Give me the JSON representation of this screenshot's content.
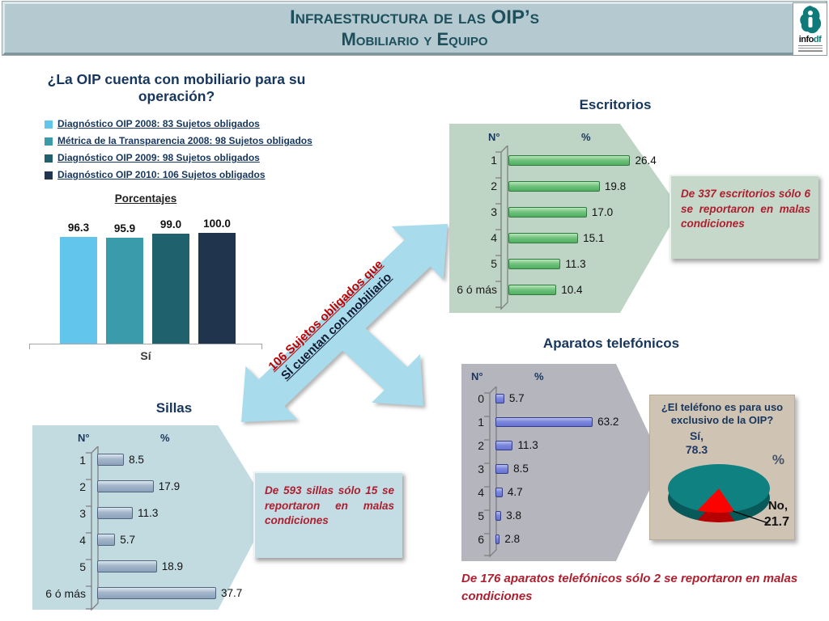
{
  "header": {
    "title_line1": "Infraestructura de las OIP’s",
    "title_line2": "Mobiliario y Equipo",
    "logo_text": "info",
    "logo_accent": "df"
  },
  "question_chart": {
    "title_line1": "¿La OIP cuenta con mobiliario para su",
    "title_line2": "operación?",
    "axis_title": "Porcentajes",
    "x_tick": "Sí",
    "legend": [
      {
        "label": "Diagnóstico OIP 2008: 83 Sujetos obligados",
        "color": "#62c5ec"
      },
      {
        "label": "Métrica de la Transparencia 2008: 98 Sujetos obligados",
        "color": "#3a9cab"
      },
      {
        "label": "Diagnóstico OIP 2009: 98 Sujetos obligados",
        "color": "#20616e"
      },
      {
        "label": "Diagnóstico OIP 2010: 106 Sujetos obligados",
        "color": "#20344d"
      }
    ],
    "value_labels": [
      "96.3",
      "95.9",
      "99.0",
      "100.0"
    ]
  },
  "arrow": {
    "line1": "106 Sujetos obligados que",
    "line2": "SÍ cuentan con mobiliario"
  },
  "escritorios": {
    "title": "Escritorios",
    "col_n": "N°",
    "col_pct": "%",
    "value_labels": [
      "26.4",
      "19.8",
      "17.0",
      "15.1",
      "11.3",
      "10.4"
    ],
    "note": "De 337 escritorios sólo 6 se reportaron en malas condiciones"
  },
  "sillas": {
    "title": "Sillas",
    "col_n": "N°",
    "col_pct": "%",
    "value_labels": [
      "8.5",
      "17.9",
      "11.3",
      "5.7",
      "18.9",
      "37.7"
    ],
    "note": "De 593 sillas sólo 15 se reportaron en malas condiciones"
  },
  "telefonos": {
    "title": "Aparatos telefónicos",
    "col_n": "N°",
    "col_pct": "%",
    "value_labels": [
      "5.7",
      "63.2",
      "11.3",
      "8.5",
      "4.7",
      "3.8",
      "2.8"
    ],
    "note": "De 176 aparatos telefónicos sólo 2 se reportaron en malas condiciones"
  },
  "pie": {
    "title_line1": "¿El teléfono es para uso",
    "title_line2": "exclusivo de la OIP?",
    "si_label": "Sí,",
    "si_value": "78.3",
    "pct_symbol": "%",
    "no_label": "No,",
    "no_value": "21.7"
  },
  "chart_data": [
    {
      "id": "mobiliario_si",
      "type": "bar",
      "title": "¿La OIP cuenta con mobiliario para su operación?",
      "ylabel": "Porcentajes",
      "xlabel": "Sí",
      "categories": [
        "Diagnóstico OIP 2008: 83 Sujetos obligados",
        "Métrica de la Transparencia 2008: 98 Sujetos obligados",
        "Diagnóstico OIP 2009: 98 Sujetos obligados",
        "Diagnóstico OIP 2010: 106 Sujetos obligados"
      ],
      "values": [
        96.3,
        95.9,
        99.0,
        100.0
      ],
      "colors": [
        "#62c5ec",
        "#3a9cab",
        "#20616e",
        "#20344d"
      ],
      "ylim": [
        0,
        100
      ],
      "legend_position": "top-left"
    },
    {
      "id": "escritorios",
      "type": "bar-horizontal",
      "title": "Escritorios",
      "xlabel": "%",
      "ylabel": "N°",
      "categories": [
        "1",
        "2",
        "3",
        "4",
        "5",
        "6 ó más"
      ],
      "values": [
        26.4,
        19.8,
        17.0,
        15.1,
        11.3,
        10.4
      ],
      "bar_color": "#5cb96a"
    },
    {
      "id": "sillas",
      "type": "bar-horizontal",
      "title": "Sillas",
      "xlabel": "%",
      "ylabel": "N°",
      "categories": [
        "1",
        "2",
        "3",
        "4",
        "5",
        "6 ó más"
      ],
      "values": [
        8.5,
        17.9,
        11.3,
        5.7,
        18.9,
        37.7
      ],
      "bar_color": "#9fb3c8"
    },
    {
      "id": "aparatos_telefonicos",
      "type": "bar-horizontal",
      "title": "Aparatos telefónicos",
      "xlabel": "%",
      "ylabel": "N°",
      "categories": [
        "0",
        "1",
        "2",
        "3",
        "4",
        "5",
        "6"
      ],
      "values": [
        5.7,
        63.2,
        11.3,
        8.5,
        4.7,
        3.8,
        2.8
      ],
      "bar_color": "#7c88dd"
    },
    {
      "id": "telefono_uso_exclusivo",
      "type": "pie",
      "title": "¿El teléfono es para uso exclusivo de la OIP?",
      "labels": [
        "Sí",
        "No"
      ],
      "values": [
        78.3,
        21.7
      ],
      "colors": [
        "#108181",
        "#fb0301"
      ]
    }
  ]
}
